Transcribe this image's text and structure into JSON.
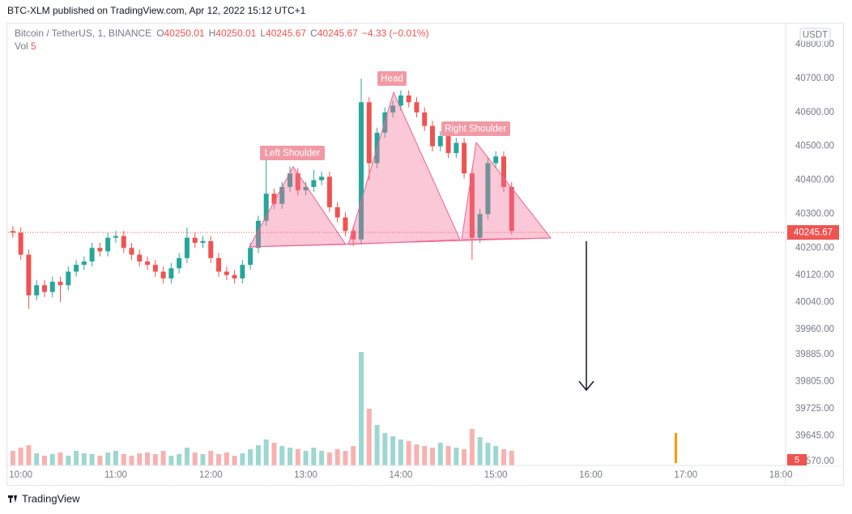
{
  "header": "BTC-XLM published on TradingView.com, Apr 12, 2022 15:12 UTC+1",
  "footer": "TradingView",
  "chart_data": {
    "type": "candlestick",
    "symbol": "Bitcoin / TetherUS, 1, BINANCE",
    "ohlc_legend": [
      {
        "label": "O",
        "value": 40250.01
      },
      {
        "label": "H",
        "value": 40250.01
      },
      {
        "label": "L",
        "value": 40245.67
      },
      {
        "label": "C",
        "value": 40245.67
      }
    ],
    "change": "−4.33 (−0.01%)",
    "volume_label": "Vol",
    "volume_last": 5,
    "currency": "USDT",
    "last_price": 40245.67,
    "annotations": [
      "Left Shoulder",
      "Head",
      "Right Shoulder"
    ],
    "x": [
      595,
      600,
      605,
      610,
      615,
      620,
      625,
      630,
      635,
      640,
      645,
      650,
      655,
      660,
      665,
      670,
      675,
      680,
      685,
      690,
      695,
      700,
      705,
      710,
      715,
      720,
      725,
      730,
      735,
      740,
      745,
      750,
      755,
      760,
      765,
      770,
      775,
      780,
      785,
      790,
      795,
      800,
      805,
      810,
      815,
      820,
      825,
      830,
      835,
      840,
      845,
      850,
      855,
      860,
      865,
      870,
      875,
      880,
      885,
      890,
      895,
      900,
      905,
      910
    ],
    "open": [
      40250,
      40245,
      40180,
      40060,
      40090,
      40070,
      40100,
      40090,
      40130,
      40150,
      40160,
      40200,
      40190,
      40230,
      40235,
      40200,
      40180,
      40160,
      40150,
      40130,
      40110,
      40140,
      40170,
      40230,
      40215,
      40220,
      40170,
      40130,
      40120,
      40110,
      40150,
      40200,
      40280,
      40360,
      40330,
      40380,
      40420,
      40370,
      40380,
      40400,
      40410,
      40320,
      40290,
      40250,
      40225,
      40630,
      40450,
      40540,
      40600,
      40620,
      40650,
      40630,
      40600,
      40560,
      40500,
      40530,
      40480,
      40510,
      40420,
      40230,
      40300,
      40450,
      40470,
      40380
    ],
    "high": [
      40265,
      40260,
      40195,
      40105,
      40105,
      40115,
      40115,
      40145,
      40165,
      40175,
      40215,
      40215,
      40245,
      40250,
      40250,
      40215,
      40195,
      40175,
      40165,
      40145,
      40155,
      40185,
      40260,
      40245,
      40235,
      40235,
      40185,
      40145,
      40135,
      40165,
      40215,
      40295,
      40470,
      40375,
      40395,
      40440,
      40435,
      40395,
      40430,
      40425,
      40425,
      40335,
      40305,
      40265,
      40700,
      40645,
      40555,
      40615,
      40635,
      40665,
      40665,
      40645,
      40615,
      40575,
      40545,
      40545,
      40525,
      40525,
      40435,
      40315,
      40465,
      40485,
      40485,
      40395
    ],
    "low": [
      40230,
      40165,
      40020,
      40045,
      40055,
      40055,
      40040,
      40075,
      40115,
      40135,
      40145,
      40175,
      40175,
      40215,
      40185,
      40165,
      40145,
      40135,
      40115,
      40095,
      40095,
      40125,
      40155,
      40200,
      40200,
      40155,
      40115,
      40105,
      40095,
      40095,
      40135,
      40185,
      40265,
      40315,
      40315,
      40365,
      40355,
      40355,
      40365,
      40385,
      40305,
      40275,
      40235,
      40205,
      40210,
      40400,
      40435,
      40525,
      40585,
      40605,
      40615,
      40585,
      40545,
      40485,
      40485,
      40465,
      40465,
      40405,
      40165,
      40215,
      40285,
      40435,
      40365,
      40240
    ],
    "close": [
      40245,
      40180,
      40060,
      40090,
      40070,
      40100,
      40090,
      40130,
      40150,
      40160,
      40200,
      40190,
      40230,
      40235,
      40200,
      40180,
      40160,
      40150,
      40130,
      40110,
      40140,
      40170,
      40230,
      40215,
      40220,
      40170,
      40130,
      40120,
      40110,
      40150,
      40200,
      40280,
      40360,
      40330,
      40380,
      40420,
      40370,
      40380,
      40400,
      40410,
      40320,
      40290,
      40250,
      40225,
      40630,
      40450,
      40540,
      40600,
      40620,
      40650,
      40630,
      40600,
      40560,
      40500,
      40530,
      40480,
      40510,
      40420,
      40230,
      40300,
      40450,
      40470,
      40380,
      40250
    ],
    "volume": [
      18,
      22,
      25,
      15,
      12,
      14,
      16,
      12,
      18,
      15,
      14,
      12,
      16,
      18,
      14,
      12,
      15,
      16,
      14,
      18,
      12,
      14,
      22,
      16,
      14,
      18,
      14,
      16,
      12,
      15,
      20,
      25,
      32,
      28,
      24,
      22,
      20,
      18,
      22,
      18,
      16,
      20,
      18,
      24,
      140,
      70,
      50,
      40,
      36,
      32,
      30,
      26,
      24,
      22,
      28,
      24,
      22,
      20,
      45,
      35,
      28,
      24,
      20,
      18
    ],
    "xlim": [
      592,
      1083
    ],
    "ylim": [
      39558,
      40860
    ],
    "xticks": [
      {
        "value": 600,
        "label": "10:00"
      },
      {
        "value": 660,
        "label": "11:00"
      },
      {
        "value": 720,
        "label": "12:00"
      },
      {
        "value": 780,
        "label": "13:00"
      },
      {
        "value": 840,
        "label": "14:00"
      },
      {
        "value": 900,
        "label": "15:00"
      },
      {
        "value": 960,
        "label": "16:00"
      },
      {
        "value": 1020,
        "label": "17:00"
      },
      {
        "value": 1080,
        "label": "18:00"
      }
    ],
    "yticks": [
      {
        "value": 40800,
        "label": "40800.00"
      },
      {
        "value": 40700,
        "label": "40700.00"
      },
      {
        "value": 40600,
        "label": "40600.00"
      },
      {
        "value": 40500,
        "label": "40500.00"
      },
      {
        "value": 40400,
        "label": "40400.00"
      },
      {
        "value": 40300,
        "label": "40300.00"
      },
      {
        "value": 40200,
        "label": "40200.00"
      },
      {
        "value": 40120,
        "label": "40120.00"
      },
      {
        "value": 40040,
        "label": "40040.00"
      },
      {
        "value": 39960,
        "label": "39960.00"
      },
      {
        "value": 39885,
        "label": "39885.00"
      },
      {
        "value": 39805,
        "label": "39805.00"
      },
      {
        "value": 39725,
        "label": "39725.00"
      },
      {
        "value": 39645,
        "label": "39645.00"
      },
      {
        "value": 39570,
        "label": "39570.00"
      }
    ],
    "up_color": "#26a69a",
    "down_color": "#ef5350"
  }
}
